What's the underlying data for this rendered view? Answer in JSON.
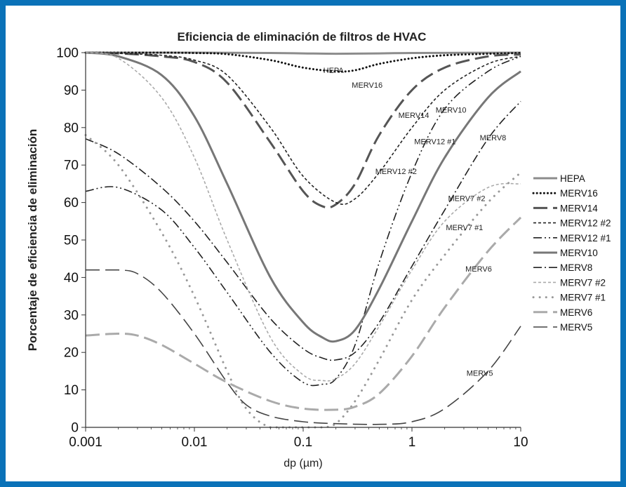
{
  "chart_data": {
    "type": "line",
    "title": "Eficiencia de eliminación de filtros de HVAC",
    "xlabel": "dp (µm)",
    "ylabel": "Porcentaje de eficiencia de eliminación",
    "x_scale": "log",
    "xlim": [
      0.001,
      10
    ],
    "ylim": [
      0,
      100
    ],
    "x_ticks": [
      "0.001",
      "0.01",
      "0.1",
      "1",
      "10"
    ],
    "y_ticks": [
      "0",
      "10",
      "20",
      "30",
      "40",
      "50",
      "60",
      "70",
      "80",
      "90",
      "100"
    ],
    "grid": false,
    "legend_position": "right",
    "series": [
      {
        "name": "HEPA",
        "color": "#8c8c8c",
        "dash": "solid",
        "width": 3,
        "annotation": "HEPA",
        "x": [
          0.001,
          0.01,
          0.05,
          0.1,
          0.2,
          0.5,
          1,
          10
        ],
        "y": [
          100,
          100,
          99.9,
          99.8,
          99.7,
          99.8,
          99.9,
          100
        ]
      },
      {
        "name": "MERV16",
        "color": "#111111",
        "dash": "dotted",
        "width": 3,
        "annotation": "MERV16",
        "x": [
          0.001,
          0.005,
          0.01,
          0.02,
          0.05,
          0.1,
          0.2,
          0.3,
          0.5,
          1,
          2,
          5,
          10
        ],
        "y": [
          100,
          100,
          99.9,
          99.6,
          98,
          96,
          95,
          95.3,
          97,
          98.5,
          99.3,
          99.7,
          99.9
        ]
      },
      {
        "name": "MERV14",
        "color": "#555555",
        "dash": "longdash",
        "width": 3,
        "annotation": "MERV14",
        "x": [
          0.001,
          0.002,
          0.005,
          0.01,
          0.02,
          0.05,
          0.1,
          0.15,
          0.2,
          0.3,
          0.5,
          1,
          2,
          5,
          10
        ],
        "y": [
          100,
          99.8,
          99,
          97.5,
          92,
          76,
          63,
          59,
          59.5,
          65,
          78,
          90,
          96,
          99,
          99.5
        ]
      },
      {
        "name": "MERV12 #2",
        "color": "#222222",
        "dash": "shortdash",
        "width": 1.6,
        "annotation": "MERV12 #2",
        "x": [
          0.001,
          0.002,
          0.005,
          0.01,
          0.02,
          0.05,
          0.1,
          0.2,
          0.3,
          0.5,
          1,
          2,
          5,
          10
        ],
        "y": [
          100,
          99.8,
          99.3,
          98,
          94,
          80,
          67,
          60,
          61,
          68,
          80,
          90,
          97,
          99
        ]
      },
      {
        "name": "MERV12 #1",
        "color": "#222222",
        "dash": "dashdotdot",
        "width": 1.6,
        "annotation": "MERV12 #1",
        "x": [
          0.001,
          0.002,
          0.005,
          0.01,
          0.02,
          0.05,
          0.1,
          0.15,
          0.2,
          0.3,
          0.5,
          1,
          2,
          5,
          10
        ],
        "y": [
          63,
          64,
          58,
          48,
          36,
          20,
          12,
          11.5,
          13,
          22,
          44,
          68,
          85,
          95,
          99
        ]
      },
      {
        "name": "MERV10",
        "color": "#777777",
        "dash": "solid",
        "width": 3,
        "annotation": "MERV10",
        "x": [
          0.001,
          0.002,
          0.005,
          0.01,
          0.02,
          0.05,
          0.1,
          0.15,
          0.2,
          0.3,
          0.5,
          1,
          2,
          5,
          10
        ],
        "y": [
          100,
          99,
          94,
          83,
          65,
          40,
          28,
          24,
          23,
          26,
          37,
          55,
          72,
          88,
          95
        ]
      },
      {
        "name": "MERV8",
        "color": "#222222",
        "dash": "dashdot",
        "width": 1.6,
        "annotation": "MERV8",
        "x": [
          0.001,
          0.002,
          0.005,
          0.01,
          0.02,
          0.05,
          0.1,
          0.15,
          0.2,
          0.3,
          0.5,
          1,
          2,
          5,
          10
        ],
        "y": [
          77,
          73,
          64,
          55,
          44,
          29,
          21,
          18.5,
          18,
          20,
          28,
          43,
          58,
          77,
          87
        ]
      },
      {
        "name": "MERV7 #2",
        "color": "#aaaaaa",
        "dash": "shortdash",
        "width": 1.6,
        "annotation": "MERV7 #2",
        "x": [
          0.001,
          0.002,
          0.005,
          0.01,
          0.02,
          0.05,
          0.1,
          0.15,
          0.2,
          0.3,
          0.5,
          1,
          2,
          5,
          10
        ],
        "y": [
          100,
          98.5,
          88,
          72,
          50,
          24,
          14,
          12.5,
          13,
          17,
          27,
          42,
          55,
          64,
          65
        ]
      },
      {
        "name": "MERV7 #1",
        "color": "#999999",
        "dash": "bigdot",
        "width": 3,
        "annotation": "MERV7 #1",
        "x": [
          0.001,
          0.002,
          0.005,
          0.01,
          0.02,
          0.03,
          0.05,
          0.1,
          0.15,
          0.2,
          0.3,
          0.5,
          1,
          2,
          5,
          10
        ],
        "y": [
          78,
          70,
          52,
          35,
          15,
          5,
          0,
          0,
          0,
          1,
          7,
          18,
          34,
          46,
          60,
          68
        ]
      },
      {
        "name": "MERV6",
        "color": "#aaaaaa",
        "dash": "longdash",
        "width": 3,
        "annotation": "MERV6",
        "x": [
          0.001,
          0.002,
          0.003,
          0.005,
          0.01,
          0.02,
          0.05,
          0.1,
          0.2,
          0.3,
          0.5,
          1,
          2,
          5,
          10
        ],
        "y": [
          24.5,
          25,
          24.5,
          22,
          17,
          12,
          7,
          5,
          4.7,
          5.5,
          9,
          19,
          32,
          47,
          56
        ]
      },
      {
        "name": "MERV5",
        "color": "#444444",
        "dash": "longdash",
        "width": 1.6,
        "annotation": "MERV5",
        "x": [
          0.001,
          0.002,
          0.003,
          0.005,
          0.01,
          0.02,
          0.03,
          0.05,
          0.1,
          0.2,
          0.5,
          1,
          2,
          5,
          10
        ],
        "y": [
          42,
          42,
          41,
          36,
          25,
          12,
          6,
          3,
          1.5,
          1,
          0.8,
          1.5,
          5,
          15,
          27
        ]
      }
    ]
  }
}
